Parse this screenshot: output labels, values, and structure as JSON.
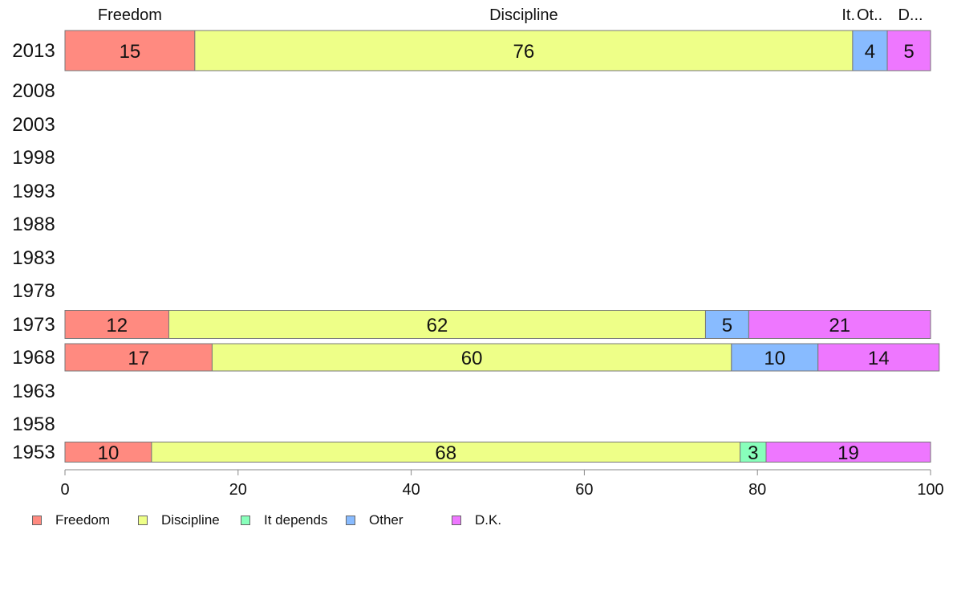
{
  "chart_data": {
    "type": "bar",
    "orientation": "horizontal",
    "stacked": true,
    "categories": [
      "2013",
      "2008",
      "2003",
      "1998",
      "1993",
      "1988",
      "1983",
      "1978",
      "1973",
      "1968",
      "1963",
      "1958",
      "1953"
    ],
    "series": [
      {
        "name": "Freedom",
        "color": "#ff8a80",
        "values": [
          15,
          null,
          null,
          null,
          null,
          null,
          null,
          null,
          12,
          17,
          null,
          null,
          10
        ]
      },
      {
        "name": "Discipline",
        "color": "#eeff88",
        "values": [
          76,
          null,
          null,
          null,
          null,
          null,
          null,
          null,
          62,
          60,
          null,
          null,
          68
        ]
      },
      {
        "name": "It depends",
        "color": "#88ffbb",
        "values": [
          0,
          null,
          null,
          null,
          null,
          null,
          null,
          null,
          0,
          0,
          null,
          null,
          3
        ]
      },
      {
        "name": "Other",
        "color": "#88bbff",
        "values": [
          4,
          null,
          null,
          null,
          null,
          null,
          null,
          null,
          5,
          10,
          null,
          null,
          null
        ]
      },
      {
        "name": "D.K.",
        "color": "#ee77ff",
        "values": [
          5,
          null,
          null,
          null,
          null,
          null,
          null,
          null,
          21,
          14,
          null,
          null,
          19
        ]
      }
    ],
    "top_labels": [
      "Freedom",
      "Discipline",
      "It.",
      "Ot..",
      "D..."
    ],
    "xlim": [
      0,
      100
    ],
    "xticks": [
      "0",
      "20",
      "40",
      "60",
      "80",
      "100"
    ],
    "grid": false,
    "legend_position": "bottom-left"
  }
}
